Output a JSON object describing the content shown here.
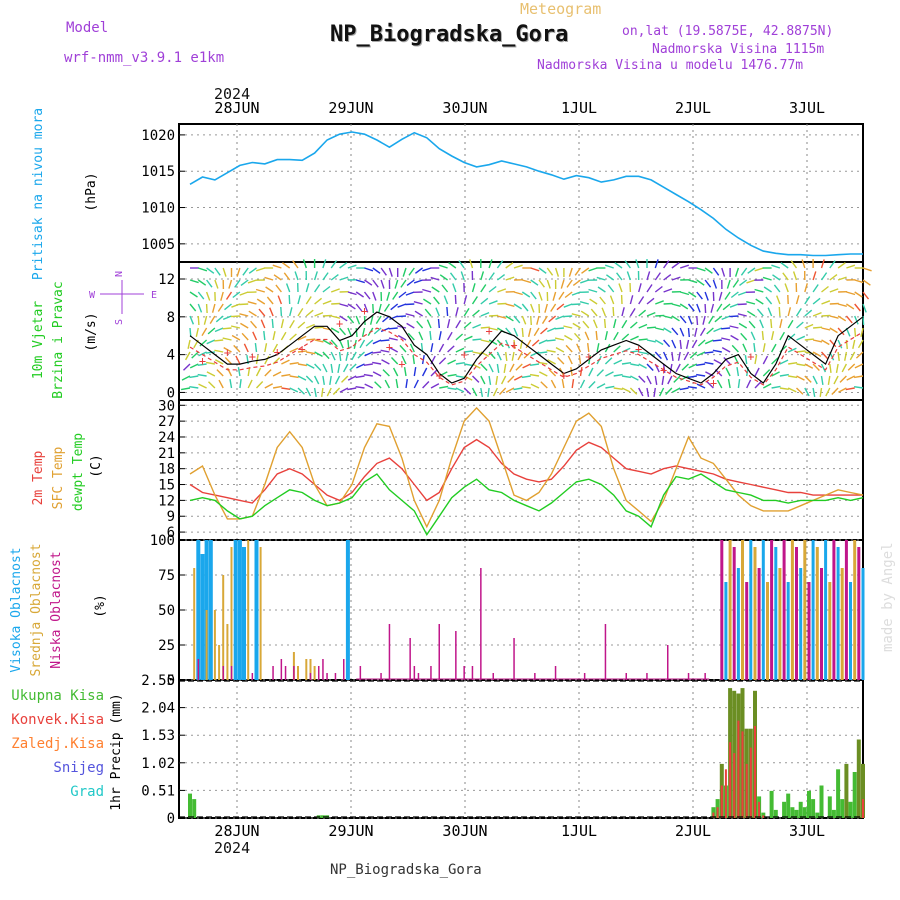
{
  "header": {
    "model_label": "Model",
    "model_name": "wrf-nmm_v3.9.1 e1km",
    "title": "NP_Biogradska_Gora",
    "subtitle": "Meteogram",
    "coords": "on,lat (19.5875E, 42.8875N)",
    "elevation": "Nadmorska Visina 1115m",
    "model_elevation": "Nadmorska Visina u modelu 1476.77m",
    "footer": "NP_Biogradska_Gora",
    "watermark": "made by Angel",
    "year_top": "2024",
    "year_bottom": "2024"
  },
  "colors": {
    "pressure": "#1aa7ec",
    "temp2m": "#e8413c",
    "sfc": "#e0a030",
    "dew": "#22cc22",
    "high": "#1aa7ec",
    "mid": "#d8a838",
    "low": "#c0168a",
    "total": "#44bb33",
    "convective": "#e8413c",
    "frozen": "#ff8030",
    "snow": "#5555dd",
    "graupel": "#22c8c8",
    "purple": "#a040d8"
  },
  "chart_data": [
    {
      "id": "pressure",
      "type": "line",
      "ylabel_lines": [
        "Pritisak na nivou mora"
      ],
      "unit": "(hPa)",
      "x_ticks": [
        "28JUN",
        "29JUN",
        "30JUN",
        "1JUL",
        "2JUL",
        "3JUL"
      ],
      "yticks": [
        "1005",
        "1010",
        "1015",
        "1020"
      ],
      "ylim": [
        1002.5,
        1021.5
      ],
      "x_hours": [
        0,
        3,
        6,
        9,
        12,
        15,
        18,
        21,
        24,
        27,
        30,
        33,
        36,
        39,
        42,
        45,
        48,
        51,
        54,
        57,
        60,
        63,
        66,
        69,
        72,
        75,
        78,
        81,
        84,
        87,
        90,
        93,
        96,
        99,
        102,
        105,
        108,
        111,
        114,
        117,
        120,
        123,
        126,
        129,
        132,
        135,
        138,
        141,
        144,
        147,
        150,
        153,
        156,
        159,
        162
      ],
      "values": [
        1013.2,
        1014.2,
        1013.8,
        1014.8,
        1015.8,
        1016.2,
        1016.0,
        1016.6,
        1016.6,
        1016.5,
        1017.5,
        1019.3,
        1020.1,
        1020.4,
        1020.1,
        1019.3,
        1018.3,
        1019.4,
        1020.3,
        1019.6,
        1018.1,
        1017.1,
        1016.2,
        1015.6,
        1015.9,
        1016.4,
        1016.0,
        1015.6,
        1015.0,
        1014.5,
        1013.9,
        1014.4,
        1014.1,
        1013.5,
        1013.8,
        1014.3,
        1014.3,
        1013.8,
        1012.8,
        1011.8,
        1010.8,
        1009.7,
        1008.5,
        1007.0,
        1005.8,
        1004.8,
        1004.0,
        1003.7,
        1003.5,
        1003.5,
        1003.4,
        1003.4,
        1003.5,
        1003.6,
        1003.6
      ]
    },
    {
      "id": "wind",
      "type": "line",
      "ylabel_lines": [
        "10m Vjetar",
        "Brzina i Pravac"
      ],
      "unit": "(m/s)",
      "yticks": [
        "0",
        "4",
        "8",
        "12"
      ],
      "ylim": [
        -0.8,
        13.8
      ],
      "compass": {
        "n": "N",
        "w": "W",
        "e": "E",
        "s": "S"
      },
      "speed_hours": [
        0,
        3,
        6,
        9,
        12,
        15,
        18,
        21,
        24,
        27,
        30,
        33,
        36,
        39,
        42,
        45,
        48,
        51,
        54,
        57,
        60,
        63,
        66,
        69,
        72,
        75,
        78,
        81,
        84,
        87,
        90,
        93,
        96,
        99,
        102,
        105,
        108,
        111,
        114,
        117,
        120,
        123,
        126,
        129,
        132,
        135,
        138,
        141,
        144,
        147,
        150,
        153,
        156,
        159,
        162
      ],
      "speed": [
        6.0,
        5.0,
        4.0,
        3.0,
        3.0,
        3.3,
        3.5,
        4.0,
        5.0,
        6.0,
        7.0,
        7.0,
        5.5,
        6.0,
        7.5,
        8.5,
        8.0,
        7.0,
        5.0,
        4.0,
        2.0,
        1.0,
        1.5,
        3.5,
        5.0,
        6.5,
        6.0,
        5.0,
        4.0,
        3.0,
        2.0,
        2.5,
        3.5,
        4.5,
        5.0,
        5.5,
        5.0,
        4.0,
        3.0,
        2.0,
        1.5,
        1.0,
        2.0,
        3.5,
        4.0,
        2.0,
        1.0,
        3.0,
        6.0,
        5.0,
        4.0,
        3.0,
        6.0,
        7.0,
        8.0
      ],
      "gust_hours": [
        3,
        9,
        15,
        21,
        27,
        36,
        42,
        48,
        51,
        60,
        66,
        72,
        78,
        90,
        96,
        108,
        114,
        126,
        135
      ],
      "gust": [
        3.3,
        4.2,
        3.8,
        4.3,
        4.6,
        7.3,
        8.6,
        4.8,
        3.0,
        1.8,
        4.0,
        6.5,
        5.0,
        1.8,
        3.8,
        4.6,
        2.4,
        1.0,
        3.8
      ]
    },
    {
      "id": "temperature",
      "type": "line",
      "ylabel_lines": [
        "2m Temp",
        "SFC Temp",
        "dewpt Temp"
      ],
      "unit": "(C)",
      "yticks": [
        "6",
        "9",
        "12",
        "15",
        "18",
        "21",
        "24",
        "27",
        "30"
      ],
      "ylim": [
        4.5,
        31
      ],
      "x_hours": [
        0,
        3,
        6,
        9,
        12,
        15,
        18,
        21,
        24,
        27,
        30,
        33,
        36,
        39,
        42,
        45,
        48,
        51,
        54,
        57,
        60,
        63,
        66,
        69,
        72,
        75,
        78,
        81,
        84,
        87,
        90,
        93,
        96,
        99,
        102,
        105,
        108,
        111,
        114,
        117,
        120,
        123,
        126,
        129,
        132,
        135,
        138,
        141,
        144,
        147,
        150,
        153,
        156,
        159,
        162
      ],
      "series": [
        {
          "name": "2m Temp",
          "values": [
            15.0,
            13.5,
            13.0,
            12.5,
            12.0,
            11.5,
            14.0,
            17.0,
            18.0,
            17.0,
            15.0,
            13.0,
            12.0,
            13.5,
            16.5,
            19.0,
            20.0,
            18.0,
            15.0,
            12.0,
            13.5,
            18.0,
            22.0,
            23.5,
            22.0,
            19.0,
            17.0,
            16.0,
            15.5,
            16.0,
            18.5,
            21.5,
            23.0,
            22.0,
            20.0,
            18.0,
            17.5,
            17.0,
            18.0,
            18.5,
            18.0,
            17.5,
            17.0,
            16.0,
            15.5,
            15.0,
            14.5,
            14.0,
            13.5,
            13.5,
            13.0,
            13.0,
            13.0,
            13.0,
            13.0
          ]
        },
        {
          "name": "SFC Temp",
          "values": [
            17.0,
            18.5,
            13.0,
            8.5,
            8.5,
            9.0,
            15.0,
            22.0,
            25.0,
            22.0,
            15.0,
            11.0,
            11.5,
            15.0,
            22.0,
            26.5,
            26.0,
            20.0,
            12.0,
            7.0,
            12.0,
            20.0,
            27.0,
            29.5,
            27.0,
            20.0,
            13.0,
            12.0,
            13.5,
            17.0,
            22.0,
            27.0,
            28.5,
            26.0,
            18.0,
            12.0,
            10.0,
            8.0,
            12.0,
            18.0,
            24.0,
            20.0,
            19.0,
            16.0,
            13.0,
            11.0,
            10.0,
            10.0,
            10.0,
            11.0,
            12.0,
            13.0,
            14.0,
            13.5,
            13.0
          ]
        },
        {
          "name": "dewpt Temp",
          "values": [
            12.0,
            12.5,
            12.0,
            10.0,
            8.5,
            9.0,
            11.0,
            12.5,
            14.0,
            13.5,
            12.0,
            11.0,
            11.5,
            12.5,
            15.5,
            17.0,
            14.0,
            12.0,
            10.0,
            5.5,
            9.0,
            12.5,
            14.5,
            16.0,
            14.0,
            13.5,
            12.0,
            11.0,
            10.0,
            11.5,
            13.5,
            15.5,
            16.0,
            15.0,
            13.0,
            10.0,
            9.0,
            7.0,
            13.0,
            16.5,
            16.0,
            17.0,
            15.5,
            14.0,
            13.5,
            13.0,
            12.0,
            12.0,
            11.5,
            12.0,
            12.0,
            12.0,
            12.5,
            12.0,
            12.5
          ]
        }
      ]
    },
    {
      "id": "clouds",
      "type": "bar",
      "ylabel_lines": [
        "Visoka Oblacnost",
        "Srednja Oblacnost",
        "Niska Oblacnost"
      ],
      "unit": "(%)",
      "yticks": [
        "0",
        "25",
        "50",
        "75",
        "100"
      ],
      "ylim": [
        0,
        100
      ],
      "series": [
        {
          "name": "Visoka Oblacnost",
          "x_hours": [
            2,
            3,
            4,
            5,
            11,
            12,
            13,
            16,
            38
          ],
          "values": [
            100,
            90,
            100,
            100,
            100,
            100,
            95,
            100,
            100
          ]
        },
        {
          "name": "Srednja Oblacnost",
          "x_hours": [
            1,
            4,
            6,
            7,
            8,
            9,
            10,
            14,
            17,
            25,
            26,
            28,
            29,
            30
          ],
          "values": [
            80,
            50,
            50,
            25,
            75,
            40,
            95,
            100,
            95,
            20,
            10,
            15,
            15,
            10
          ]
        },
        {
          "name": "Niska Oblacnost",
          "x_hours": [
            2,
            8,
            10,
            15,
            20,
            22,
            23,
            25,
            29,
            31,
            32,
            33,
            35,
            37,
            41,
            46,
            48,
            53,
            54,
            55,
            58,
            60,
            64,
            66,
            68,
            70,
            73,
            78,
            83,
            88,
            95,
            100,
            105,
            110,
            115,
            120,
            124
          ],
          "values": [
            15,
            10,
            10,
            5,
            10,
            15,
            10,
            10,
            5,
            10,
            15,
            5,
            5,
            15,
            10,
            5,
            40,
            30,
            10,
            5,
            10,
            40,
            35,
            10,
            10,
            80,
            5,
            30,
            5,
            10,
            5,
            40,
            5,
            5,
            25,
            5,
            5
          ]
        }
      ],
      "dense_after_hour": 128
    },
    {
      "id": "precip",
      "type": "bar",
      "ylabel_lines": [
        "Ukupna Kisa",
        "Konvek.Kisa",
        "Zaledj.Kisa",
        "Snijeg",
        "Grad"
      ],
      "unit": "1hr Precip (mm)",
      "yticks": [
        "0",
        "0.51",
        "1.02",
        "1.53",
        "2.04",
        "2.55"
      ],
      "ylim": [
        0,
        2.55
      ],
      "x_hours": [
        0,
        1,
        2,
        31,
        32,
        33,
        126,
        127,
        128,
        129,
        130,
        131,
        132,
        133,
        134,
        135,
        136,
        137,
        138,
        139,
        140,
        141,
        142,
        143,
        144,
        145,
        146,
        147,
        148,
        149,
        150,
        151,
        152,
        153,
        154,
        155,
        156,
        157,
        158,
        159,
        160,
        161,
        162
      ],
      "total": [
        0.45,
        0.35,
        0.0,
        0.05,
        0.05,
        0.05,
        0.2,
        0.35,
        1.0,
        0.6,
        2.4,
        2.35,
        2.3,
        2.4,
        1.65,
        1.65,
        2.35,
        0.4,
        0.1,
        0.0,
        0.5,
        0.15,
        0.0,
        0.3,
        0.45,
        0.2,
        0.15,
        0.3,
        0.2,
        0.5,
        0.35,
        0.1,
        0.6,
        0.0,
        0.4,
        0.15,
        0.9,
        0.35,
        1.0,
        0.3,
        0.85,
        1.45,
        1.0
      ],
      "convective": [
        0.0,
        0.0,
        0.0,
        0.0,
        0.0,
        0.0,
        0.1,
        0.2,
        0.6,
        0.9,
        1.4,
        1.2,
        1.8,
        1.6,
        1.0,
        1.3,
        1.7,
        0.3,
        0.05,
        0.0,
        0.0,
        0.0,
        0.0,
        0.0,
        0.0,
        0.0,
        0.0,
        0.0,
        0.0,
        0.0,
        0.0,
        0.0,
        0.0,
        0.0,
        0.0,
        0.0,
        0.0,
        0.0,
        0.0,
        0.0,
        0.0,
        0.0,
        0.35
      ]
    }
  ]
}
